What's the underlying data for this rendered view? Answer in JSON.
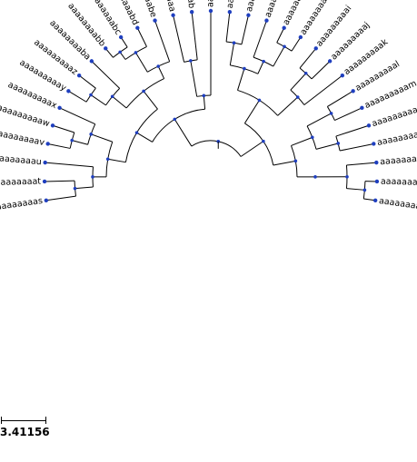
{
  "tree": {
    "leaves": [
      "aaaaaaaaaa",
      "aaaaaaaaab",
      "aaaaaaaaac",
      "aaaaaaaaad",
      "aaaaaaaaae",
      "aaaaaaaaaf",
      "aaaaaaaaag",
      "aaaaaaaaah",
      "aaaaaaaaai",
      "aaaaaaaaaj",
      "aaaaaaaaak",
      "aaaaaaaaal",
      "aaaaaaaaam",
      "aaaaaaaaan",
      "aaaaaaaaao",
      "aaaaaaaaap",
      "aaaaaaaaaq",
      "aaaaaaaaar",
      "aaaaaaaaas",
      "aaaaaaaaat",
      "aaaaaaaaau",
      "aaaaaaaaav",
      "aaaaaaaaaw",
      "aaaaaaaaax",
      "aaaaaaaaay",
      "aaaaaaaaaz",
      "aaaaaaaaba",
      "aaaaaaaabb",
      "aaaaaaaabc",
      "aaaaaaaabd",
      "aaaaaaaabe"
    ],
    "node_color": "#1f3fbf",
    "edge_color": "#000000"
  },
  "scale": {
    "label": "3.41156"
  }
}
